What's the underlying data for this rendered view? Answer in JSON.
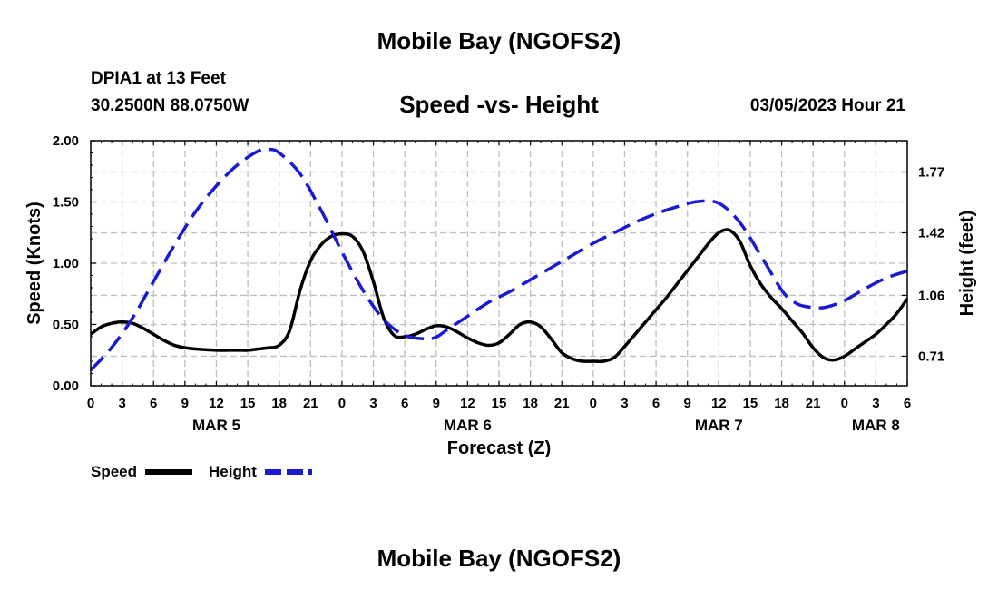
{
  "header": {
    "title": "Mobile Bay (NGOFS2)",
    "station": "DPIA1 at 13 Feet",
    "coordinates": "30.2500N  88.0750W",
    "timestamp": "03/05/2023 Hour 21"
  },
  "footer": {
    "title": "Mobile Bay (NGOFS2)"
  },
  "chart_data": {
    "type": "line",
    "title": "Speed -vs- Height",
    "xlabel": "Forecast (Z)",
    "ylabel_left": "Speed (Knots)",
    "ylabel_right": "Height (feet)",
    "x_unit": "hours since MAR 5 00Z",
    "xlim": [
      0,
      78
    ],
    "x_ticks": [
      0,
      3,
      6,
      9,
      12,
      15,
      18,
      21,
      24,
      27,
      30,
      33,
      36,
      39,
      42,
      45,
      48,
      51,
      54,
      57,
      60,
      63,
      66,
      69,
      72,
      75,
      78
    ],
    "x_tick_labels": [
      "0",
      "3",
      "6",
      "9",
      "12",
      "15",
      "18",
      "21",
      "0",
      "3",
      "6",
      "9",
      "12",
      "15",
      "18",
      "21",
      "0",
      "3",
      "6",
      "9",
      "12",
      "15",
      "18",
      "21",
      "0",
      "3",
      "6"
    ],
    "date_labels": [
      {
        "label": "MAR 5",
        "x": 12
      },
      {
        "label": "MAR 6",
        "x": 36
      },
      {
        "label": "MAR 7",
        "x": 60
      },
      {
        "label": "MAR 8",
        "x": 75
      }
    ],
    "ylim_left": [
      0,
      2.0
    ],
    "y_ticks_left": [
      "0.00",
      "0.50",
      "1.00",
      "1.50",
      "2.00"
    ],
    "ylim_right": [
      0.54,
      1.95
    ],
    "y_ticks_right": [
      "0.71",
      "1.06",
      "1.42",
      "1.77"
    ],
    "grid": true,
    "legend": [
      {
        "name": "Speed",
        "color": "#000000",
        "style": "solid"
      },
      {
        "name": "Height",
        "color": "#1a1ad0",
        "style": "dashed"
      }
    ],
    "series": [
      {
        "name": "Speed",
        "axis": "left",
        "color": "#000000",
        "x": [
          0,
          1,
          2,
          3,
          4,
          5,
          6,
          7,
          8,
          9,
          10,
          12,
          14,
          15,
          16,
          17,
          18,
          19,
          20,
          21,
          22,
          23,
          24,
          25,
          26,
          27,
          28,
          29,
          30,
          31,
          32,
          33,
          34,
          35,
          36,
          37,
          38,
          39,
          40,
          41,
          42,
          43,
          44,
          45,
          46,
          47,
          48,
          49,
          50,
          51,
          52,
          53,
          54,
          55,
          56,
          57,
          58,
          59,
          60,
          61,
          62,
          63,
          64,
          65,
          66,
          67,
          68,
          69,
          70,
          71,
          72,
          73,
          74,
          75,
          76,
          77,
          78
        ],
        "y": [
          0.42,
          0.48,
          0.51,
          0.52,
          0.51,
          0.47,
          0.42,
          0.37,
          0.33,
          0.31,
          0.3,
          0.29,
          0.29,
          0.29,
          0.3,
          0.31,
          0.33,
          0.45,
          0.78,
          1.02,
          1.15,
          1.22,
          1.24,
          1.22,
          1.1,
          0.85,
          0.55,
          0.41,
          0.4,
          0.42,
          0.46,
          0.49,
          0.48,
          0.44,
          0.39,
          0.35,
          0.33,
          0.35,
          0.42,
          0.5,
          0.52,
          0.48,
          0.38,
          0.27,
          0.22,
          0.2,
          0.2,
          0.2,
          0.23,
          0.32,
          0.42,
          0.52,
          0.62,
          0.72,
          0.83,
          0.94,
          1.05,
          1.16,
          1.25,
          1.27,
          1.18,
          0.98,
          0.83,
          0.72,
          0.63,
          0.53,
          0.43,
          0.31,
          0.23,
          0.21,
          0.24,
          0.3,
          0.36,
          0.42,
          0.5,
          0.59,
          0.71
        ]
      },
      {
        "name": "Height",
        "axis": "right",
        "color": "#1a1ad0",
        "x": [
          0,
          2,
          4,
          6,
          8,
          10,
          12,
          14,
          16,
          17,
          18,
          20,
          22,
          24,
          26,
          28,
          30,
          32,
          33,
          34,
          36,
          38,
          40,
          42,
          44,
          46,
          48,
          50,
          52,
          54,
          56,
          58,
          60,
          62,
          64,
          66,
          67,
          68,
          70,
          72,
          74,
          76,
          78
        ],
        "y": [
          0.63,
          0.76,
          0.93,
          1.14,
          1.35,
          1.54,
          1.69,
          1.81,
          1.89,
          1.9,
          1.88,
          1.76,
          1.55,
          1.31,
          1.09,
          0.92,
          0.83,
          0.81,
          0.82,
          0.86,
          0.94,
          1.02,
          1.08,
          1.15,
          1.22,
          1.29,
          1.36,
          1.42,
          1.48,
          1.53,
          1.57,
          1.6,
          1.59,
          1.48,
          1.29,
          1.09,
          1.03,
          1.0,
          0.99,
          1.03,
          1.1,
          1.16,
          1.2
        ]
      }
    ]
  }
}
